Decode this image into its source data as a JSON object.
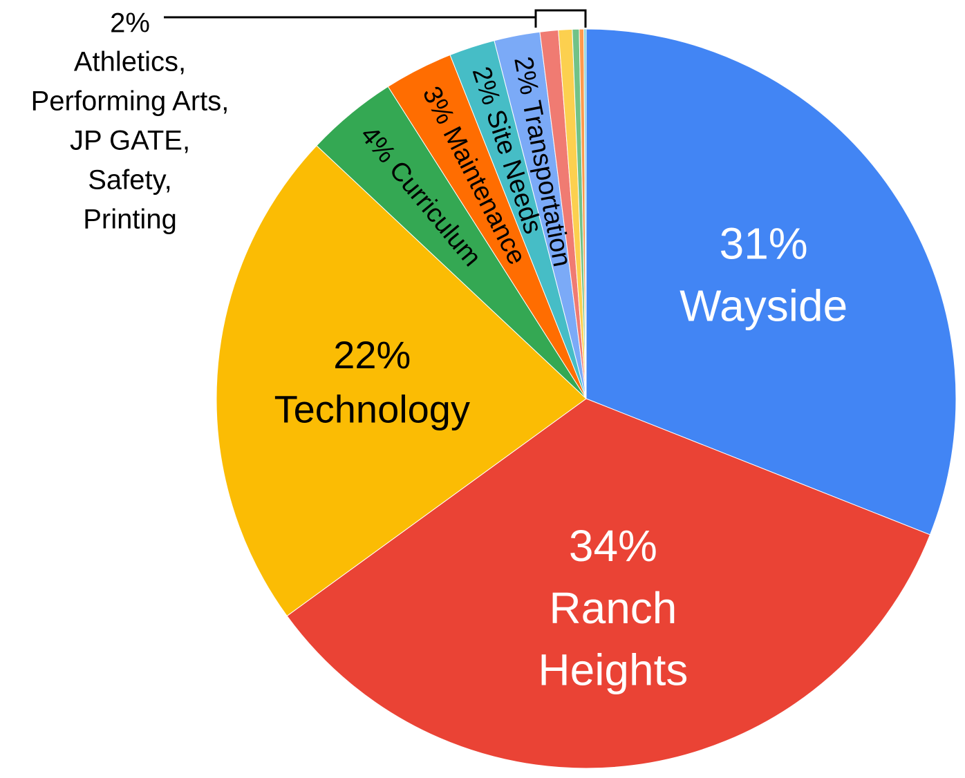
{
  "chart_data": {
    "type": "pie",
    "categories": [
      "Wayside",
      "Ranch Heights",
      "Technology",
      "Curriculum",
      "Maintenance",
      "Site Needs",
      "Transportation",
      "Athletics,",
      "Performing Arts,",
      "JP GATE,",
      "Safety,",
      "Printing"
    ],
    "values": [
      31,
      34,
      22,
      4,
      3,
      2,
      2,
      0.8,
      0.6,
      0.3,
      0.2,
      0.1
    ],
    "value_labels": [
      "31%",
      "34%",
      "22%",
      "4%",
      "3%",
      "2%",
      "2%",
      null,
      null,
      null,
      null,
      null
    ],
    "colors": [
      "#4285f4",
      "#ea4335",
      "#fbbc04",
      "#34a853",
      "#ff6d01",
      "#46bdc6",
      "#7baaf7",
      "#f07b72",
      "#fcd04f",
      "#71c287",
      "#ff994d",
      "#7ed1d7"
    ],
    "small_group_label": "2%"
  }
}
